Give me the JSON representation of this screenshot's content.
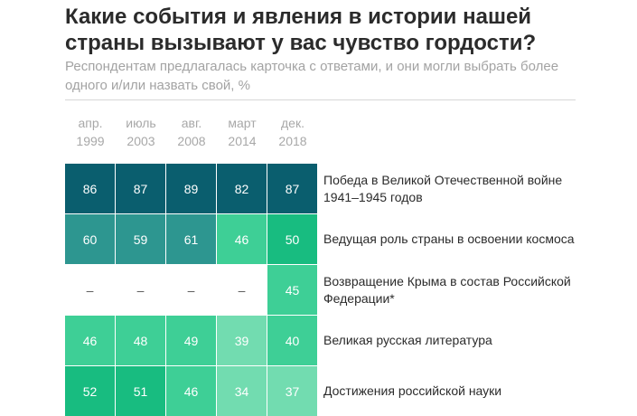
{
  "chart_data": {
    "type": "heatmap",
    "title": "Какие события и явления в истории нашей страны вызывают у вас чувство гордости?",
    "subtitle": "Респондентам предлагалась карточка с ответами, и они могли выбрать более одного и/или назвать свой, %",
    "columns": [
      {
        "month": "апр.",
        "year": "1999"
      },
      {
        "month": "июль",
        "year": "2003"
      },
      {
        "month": "авг.",
        "year": "2008"
      },
      {
        "month": "март",
        "year": "2014"
      },
      {
        "month": "дек.",
        "year": "2018"
      }
    ],
    "rows": [
      {
        "label": "Победа в Великой Отечественной войне 1941–1945 годов",
        "values": [
          "86",
          "87",
          "89",
          "82",
          "87"
        ]
      },
      {
        "label": "Ведущая роль страны в освоении космоса",
        "values": [
          "60",
          "59",
          "61",
          "46",
          "50"
        ]
      },
      {
        "label": "Возвращение Крыма в состав Российской Федерации*",
        "values": [
          "–",
          "–",
          "–",
          "–",
          "45"
        ]
      },
      {
        "label": "Великая русская литература",
        "values": [
          "46",
          "48",
          "49",
          "39",
          "40"
        ]
      },
      {
        "label": "Достижения российской науки",
        "values": [
          "52",
          "51",
          "46",
          "34",
          "37"
        ]
      }
    ],
    "color_scale": {
      "dark": "#0a5e6e",
      "mid_teal": "#2d9690",
      "green": "#18bc80",
      "light_green": "#3ecf96",
      "pale_green": "#72dcb0",
      "empty": "#ffffff"
    }
  }
}
